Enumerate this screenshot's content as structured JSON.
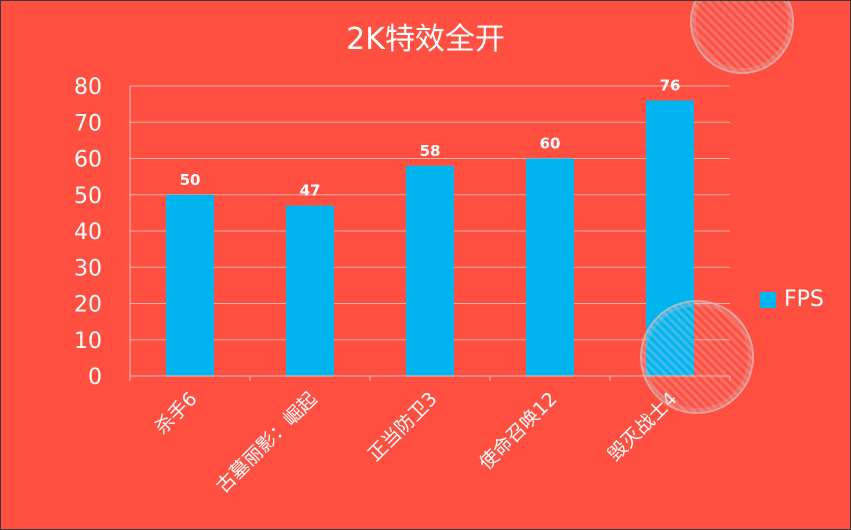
{
  "title": "2K特效全开",
  "colors": {
    "background": "#fe4f41",
    "bar": "#00b4ef",
    "text": "#ffffff",
    "grid": "#f6b2ab"
  },
  "chart_data": {
    "type": "bar",
    "title": "2K特效全开",
    "categories": [
      "杀手6",
      "古墓丽影：崛起",
      "正当防卫3",
      "使命召唤12",
      "毁灭战士4"
    ],
    "series": [
      {
        "name": "FPS",
        "values": [
          50,
          47,
          58,
          60,
          76
        ]
      }
    ],
    "ylim": [
      0,
      80
    ],
    "yticks": [
      0,
      10,
      20,
      30,
      40,
      50,
      60,
      70,
      80
    ],
    "grid": true,
    "legend": "right",
    "data_labels": true
  }
}
